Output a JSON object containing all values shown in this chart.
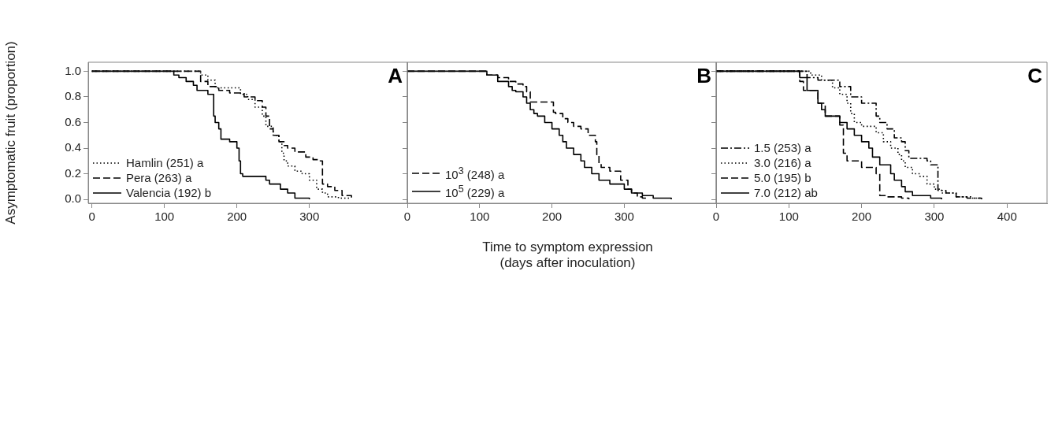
{
  "chart_data": [
    {
      "type": "step",
      "title": "A",
      "ylabel": "Asymptomatic fruit (proportion)",
      "xlim": [
        -5,
        435
      ],
      "xticks": [
        0,
        100,
        200,
        300
      ],
      "ylim": [
        -0.03,
        1.07
      ],
      "yticks": [
        {
          "value": 0,
          "label": "0.0"
        },
        {
          "value": 0.2,
          "label": "0.2"
        },
        {
          "value": 0.4,
          "label": "0.4"
        },
        {
          "value": 0.6,
          "label": "0.6"
        },
        {
          "value": 0.8,
          "label": "0.8"
        },
        {
          "value": 1,
          "label": "1.0"
        }
      ],
      "grid": false,
      "legend": "bottom left",
      "series": [
        {
          "name": "Hamlin (251) a",
          "color": "#000000",
          "line_style": "dotted",
          "x": [
            0,
            150,
            160,
            170,
            205,
            215,
            225,
            235,
            240,
            250,
            258,
            262,
            265,
            270,
            280,
            290,
            300,
            310,
            318,
            325,
            340,
            355
          ],
          "values": [
            1.0,
            0.97,
            0.93,
            0.87,
            0.82,
            0.78,
            0.72,
            0.65,
            0.57,
            0.5,
            0.45,
            0.36,
            0.3,
            0.26,
            0.22,
            0.2,
            0.15,
            0.08,
            0.05,
            0.02,
            0.01,
            0.0
          ]
        },
        {
          "name": "Pera (263) a",
          "color": "#000000",
          "line_style": "dashed",
          "x": [
            0,
            150,
            160,
            175,
            190,
            210,
            225,
            235,
            240,
            245,
            250,
            258,
            265,
            270,
            280,
            295,
            305,
            315,
            318,
            325,
            335,
            345,
            358
          ],
          "values": [
            1.0,
            0.92,
            0.88,
            0.85,
            0.83,
            0.8,
            0.77,
            0.72,
            0.65,
            0.55,
            0.5,
            0.45,
            0.42,
            0.4,
            0.37,
            0.33,
            0.31,
            0.3,
            0.12,
            0.1,
            0.07,
            0.03,
            0.0
          ]
        },
        {
          "name": "Valencia (192) b",
          "color": "#000000",
          "line_style": "solid",
          "x": [
            0,
            113,
            120,
            130,
            140,
            145,
            160,
            168,
            170,
            175,
            178,
            190,
            200,
            203,
            205,
            208,
            240,
            245,
            260,
            270,
            280,
            300
          ],
          "values": [
            1.0,
            0.97,
            0.95,
            0.92,
            0.89,
            0.85,
            0.82,
            0.65,
            0.6,
            0.55,
            0.47,
            0.45,
            0.4,
            0.3,
            0.2,
            0.18,
            0.15,
            0.12,
            0.08,
            0.05,
            0.01,
            0.0
          ]
        }
      ]
    },
    {
      "type": "step",
      "title": "B",
      "xlabel": "Time to symptom expression\n(days after inoculation)",
      "xlim": [
        0,
        427
      ],
      "xticks": [
        0,
        100,
        200,
        300
      ],
      "ylim": [
        -0.03,
        1.07
      ],
      "yticks": [
        0.0,
        0.2,
        0.4,
        0.6,
        0.8,
        1.0
      ],
      "tick_labels": "x",
      "grid": false,
      "legend": "bottom left",
      "series": [
        {
          "name": "10$^{3}$ (248) a",
          "color": "#000000",
          "line_style": "dashed",
          "x": [
            0,
            110,
            125,
            140,
            150,
            160,
            165,
            170,
            202,
            205,
            215,
            222,
            230,
            240,
            250,
            260,
            262,
            265,
            268,
            280,
            295,
            305,
            310,
            318,
            325,
            330
          ],
          "values": [
            1.0,
            0.97,
            0.95,
            0.92,
            0.9,
            0.88,
            0.84,
            0.76,
            0.68,
            0.67,
            0.63,
            0.6,
            0.57,
            0.55,
            0.5,
            0.45,
            0.35,
            0.28,
            0.25,
            0.22,
            0.15,
            0.08,
            0.05,
            0.02,
            0.01,
            0.0
          ]
        },
        {
          "name": "10$^{5}$ (229) a",
          "color": "#000000",
          "line_style": "solid",
          "x": [
            0,
            110,
            125,
            140,
            145,
            150,
            160,
            165,
            170,
            175,
            180,
            190,
            200,
            210,
            215,
            220,
            230,
            240,
            245,
            255,
            265,
            280,
            300,
            310,
            325,
            340,
            355,
            365
          ],
          "values": [
            1.0,
            0.97,
            0.92,
            0.88,
            0.85,
            0.84,
            0.8,
            0.75,
            0.7,
            0.67,
            0.65,
            0.6,
            0.55,
            0.5,
            0.45,
            0.4,
            0.35,
            0.3,
            0.25,
            0.2,
            0.15,
            0.12,
            0.08,
            0.05,
            0.03,
            0.01,
            0.01,
            0.0
          ]
        }
      ]
    },
    {
      "type": "step",
      "title": "C",
      "xlim": [
        0,
        455
      ],
      "xticks": [
        0,
        100,
        200,
        300,
        400
      ],
      "ylim": [
        -0.03,
        1.07
      ],
      "yticks": [
        0.0,
        0.2,
        0.4,
        0.6,
        0.8,
        1.0
      ],
      "tick_labels": "x",
      "grid": false,
      "legend": "bottom left",
      "series": [
        {
          "name": "1.5 (253) a",
          "color": "#000000",
          "line_style": "dashdot",
          "x": [
            0,
            125,
            140,
            170,
            185,
            200,
            220,
            225,
            235,
            245,
            255,
            260,
            265,
            290,
            295,
            305,
            316,
            330,
            345,
            365
          ],
          "values": [
            1.0,
            0.95,
            0.93,
            0.88,
            0.8,
            0.75,
            0.65,
            0.6,
            0.55,
            0.48,
            0.45,
            0.38,
            0.32,
            0.3,
            0.27,
            0.07,
            0.05,
            0.02,
            0.01,
            0.0
          ]
        },
        {
          "name": "3.0 (216) a",
          "color": "#000000",
          "line_style": "dotted",
          "x": [
            0,
            130,
            145,
            160,
            170,
            180,
            185,
            190,
            200,
            220,
            230,
            240,
            250,
            255,
            260,
            270,
            280,
            290,
            300,
            310,
            330,
            350,
            365
          ],
          "values": [
            1.0,
            0.97,
            0.93,
            0.87,
            0.82,
            0.75,
            0.67,
            0.6,
            0.57,
            0.52,
            0.45,
            0.4,
            0.35,
            0.3,
            0.25,
            0.2,
            0.18,
            0.12,
            0.08,
            0.05,
            0.02,
            0.01,
            0.0
          ]
        },
        {
          "name": "5.0 (195) b",
          "color": "#000000",
          "line_style": "dashed",
          "x": [
            0,
            115,
            120,
            140,
            150,
            170,
            175,
            180,
            200,
            220,
            225,
            235,
            255,
            265
          ],
          "values": [
            1.0,
            0.92,
            0.85,
            0.75,
            0.65,
            0.58,
            0.36,
            0.3,
            0.25,
            0.2,
            0.03,
            0.02,
            0.01,
            0.0
          ]
        },
        {
          "name": "7.0 (212) ab",
          "color": "#000000",
          "line_style": "solid",
          "x": [
            0,
            115,
            125,
            140,
            145,
            150,
            170,
            180,
            190,
            200,
            210,
            215,
            225,
            240,
            245,
            255,
            260,
            270,
            295,
            310
          ],
          "values": [
            1.0,
            0.95,
            0.85,
            0.75,
            0.7,
            0.65,
            0.6,
            0.55,
            0.5,
            0.45,
            0.4,
            0.33,
            0.27,
            0.2,
            0.15,
            0.1,
            0.06,
            0.03,
            0.01,
            0.0
          ]
        }
      ]
    }
  ]
}
